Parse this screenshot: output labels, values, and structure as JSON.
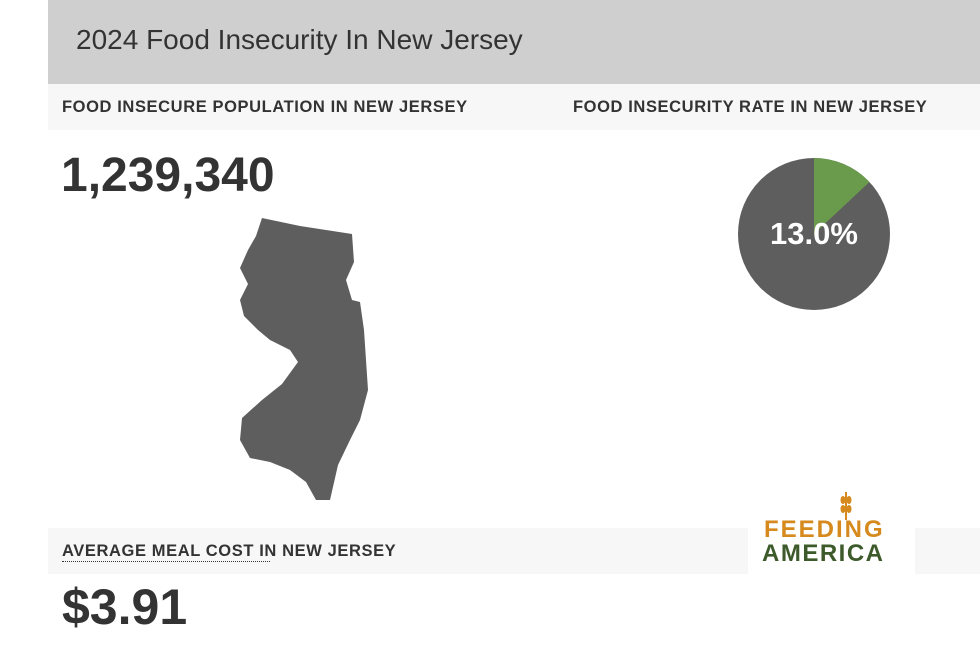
{
  "header": {
    "title": "2024 Food Insecurity In New Jersey"
  },
  "population": {
    "label": "FOOD INSECURE POPULATION IN NEW JERSEY",
    "value": "1,239,340"
  },
  "rate": {
    "label": "FOOD INSECURITY RATE IN NEW JERSEY",
    "value": 13.0,
    "value_label": "13.0%"
  },
  "meal_cost": {
    "label": "AVERAGE MEAL COST IN NEW JERSEY",
    "value": "$3.91"
  },
  "logo": {
    "line1": "FEEDING",
    "line2": "AMERICA"
  }
}
